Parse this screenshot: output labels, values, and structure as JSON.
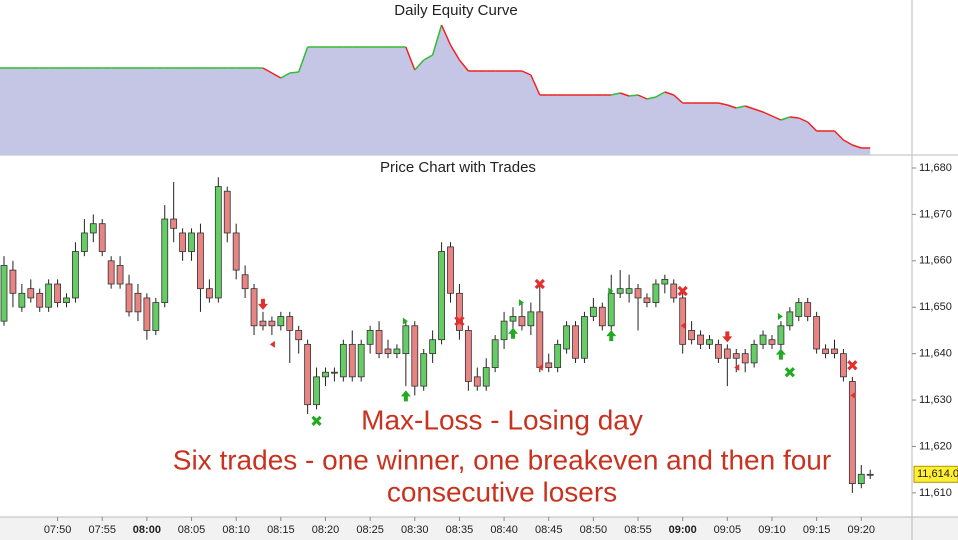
{
  "chart_data": [
    {
      "type": "area",
      "title": "Daily Equity Curve",
      "fill": "#c5c5e6",
      "up_color": "#33bb33",
      "down_color": "#ee2222",
      "ylim": [
        0,
        155
      ],
      "values": [
        87,
        87,
        87,
        87,
        87,
        87,
        87,
        87,
        87,
        87,
        87,
        87,
        87,
        87,
        87,
        87,
        87,
        87,
        87,
        87,
        87,
        87,
        87,
        87,
        87,
        87,
        87,
        87,
        87,
        87,
        82,
        77,
        82,
        83,
        108,
        108,
        108,
        108,
        108,
        108,
        108,
        108,
        108,
        108,
        108,
        108,
        85,
        95,
        100,
        130,
        110,
        95,
        84,
        84,
        84,
        84,
        84,
        84,
        84,
        80,
        60,
        60,
        60,
        60,
        60,
        60,
        60,
        60,
        60,
        62,
        59,
        60,
        56,
        58,
        63,
        60,
        52,
        52,
        52,
        52,
        52,
        50,
        47,
        49,
        46,
        43,
        39,
        35,
        38,
        37,
        33,
        24,
        24,
        24,
        15,
        10,
        7,
        7
      ]
    },
    {
      "type": "candlestick",
      "title": "Price Chart with Trades",
      "up_color": "#66cc66",
      "down_color": "#e88484",
      "categories": [
        null,
        null,
        null,
        null,
        null,
        null,
        "07:50",
        null,
        null,
        null,
        null,
        "07:55",
        null,
        null,
        null,
        null,
        "08:00",
        null,
        null,
        null,
        null,
        "08:05",
        null,
        null,
        null,
        null,
        "08:10",
        null,
        null,
        null,
        null,
        "08:15",
        null,
        null,
        null,
        null,
        "08:20",
        null,
        null,
        null,
        null,
        "08:25",
        null,
        null,
        null,
        null,
        "08:30",
        null,
        null,
        null,
        null,
        "08:35",
        null,
        null,
        null,
        null,
        "08:40",
        null,
        null,
        null,
        null,
        "08:45",
        null,
        null,
        null,
        null,
        "08:50",
        null,
        null,
        null,
        null,
        "08:55",
        null,
        null,
        null,
        null,
        "09:00",
        null,
        null,
        null,
        null,
        "09:05",
        null,
        null,
        null,
        null,
        "09:10",
        null,
        null,
        null,
        null,
        "09:15",
        null,
        null,
        null,
        null,
        "09:20",
        null
      ],
      "open": [
        11647,
        11658,
        11650,
        11654,
        11653,
        11650,
        11655,
        11651,
        11652,
        11662,
        11666,
        11668,
        11660,
        11659,
        11655,
        11653,
        11652,
        11645,
        11651,
        11669,
        11666,
        11662,
        11666,
        11654,
        11652,
        11675,
        11666,
        11657,
        11654,
        11647,
        11647,
        11646,
        11648,
        11645,
        11642,
        11629,
        11635,
        11636,
        11635,
        11642,
        11635,
        11642,
        11645,
        11641,
        11640,
        11640,
        11646,
        11633,
        11640,
        11643,
        11663,
        11653,
        11645,
        11635,
        11633,
        11637,
        11643,
        11647,
        11648,
        11646,
        11649,
        11638,
        11637,
        11641,
        11646,
        11639,
        11648,
        11650,
        11646,
        11653,
        11653,
        11654,
        11652,
        11651,
        11655,
        11655,
        11652,
        11645,
        11644,
        11642,
        11642,
        11641,
        11640,
        11640,
        11638,
        11642,
        11643,
        11642,
        11646,
        11648,
        11651,
        11648,
        11641,
        11641,
        11640,
        11634,
        11612,
        11614
      ],
      "high": [
        11661,
        11660,
        11655,
        11656,
        11654,
        11656,
        11656,
        11653,
        11664,
        11669,
        11670,
        11669,
        11661,
        11661,
        11657,
        11655,
        11653,
        11652,
        11672,
        11677,
        11667,
        11667,
        11668,
        11656,
        11678,
        11676,
        11668,
        11659,
        11655,
        11649,
        11648,
        11649,
        11649,
        11646,
        11643,
        11637,
        11637,
        11637,
        11643,
        11645,
        11643,
        11646,
        11647,
        11643,
        11642,
        11647,
        11647,
        11641,
        11645,
        11664,
        11664,
        11655,
        11646,
        11637,
        11639,
        11644,
        11649,
        11650,
        11651,
        11651,
        11655,
        11640,
        11643,
        11647,
        11647,
        11649,
        11652,
        11651,
        11657,
        11658,
        11657,
        11655,
        11653,
        11656,
        11657,
        11656,
        11654,
        11647,
        11645,
        11644,
        11643,
        11642,
        11641,
        11641,
        11643,
        11645,
        11644,
        11647,
        11650,
        11652,
        11652,
        11649,
        11642,
        11643,
        11641,
        11635,
        11616,
        11615
      ],
      "low": [
        11646,
        11650,
        11649,
        11651,
        11649,
        11649,
        11650,
        11650,
        11651,
        11661,
        11664,
        11661,
        11654,
        11654,
        11648,
        11647,
        11643,
        11644,
        11650,
        11664,
        11660,
        11660,
        11649,
        11651,
        11651,
        11664,
        11656,
        11652,
        11644,
        11645,
        11644,
        11645,
        11638,
        11640,
        11627,
        11628,
        11633,
        11634,
        11634,
        11634,
        11634,
        11640,
        11639,
        11639,
        11639,
        11633,
        11631,
        11632,
        11638,
        11642,
        11651,
        11643,
        11632,
        11632,
        11632,
        11636,
        11641,
        11645,
        11645,
        11644,
        11636,
        11636,
        11636,
        11640,
        11638,
        11638,
        11647,
        11645,
        11645,
        11652,
        11651,
        11645,
        11650,
        11650,
        11653,
        11651,
        11640,
        11642,
        11641,
        11641,
        11638,
        11633,
        11636,
        11636,
        11637,
        11641,
        11641,
        11641,
        11645,
        11647,
        11647,
        11640,
        11639,
        11639,
        11634,
        11610,
        11611,
        11613
      ],
      "close": [
        11659,
        11653,
        11653,
        11652,
        11650,
        11655,
        11651,
        11652,
        11662,
        11666,
        11668,
        11662,
        11655,
        11655,
        11649,
        11649,
        11645,
        11651,
        11669,
        11667,
        11662,
        11666,
        11654,
        11652,
        11676,
        11666,
        11658,
        11654,
        11646,
        11646,
        11646,
        11648,
        11645,
        11643,
        11629,
        11635,
        11636,
        11636,
        11642,
        11635,
        11642,
        11645,
        11640,
        11640,
        11641,
        11646,
        11633,
        11640,
        11643,
        11662,
        11653,
        11645,
        11634,
        11633,
        11637,
        11643,
        11647,
        11648,
        11646,
        11649,
        11637,
        11637,
        11642,
        11646,
        11639,
        11648,
        11650,
        11646,
        11653,
        11654,
        11654,
        11652,
        11651,
        11655,
        11656,
        11652,
        11642,
        11643,
        11642,
        11643,
        11639,
        11639,
        11639,
        11638,
        11642,
        11644,
        11642,
        11646,
        11649,
        11651,
        11648,
        11641,
        11640,
        11640,
        11635,
        11612,
        11614,
        11614
      ],
      "ylim": [
        11604.8,
        11682.8
      ],
      "yticks": [
        {
          "value": 11610,
          "label": "11,610"
        },
        {
          "value": 11620,
          "label": "11,620"
        },
        {
          "value": 11630,
          "label": "11,630"
        },
        {
          "value": 11640,
          "label": "11,640"
        },
        {
          "value": 11650,
          "label": "11,650"
        },
        {
          "value": 11660,
          "label": "11,660"
        },
        {
          "value": 11670,
          "label": "11,670"
        },
        {
          "value": 11680,
          "label": "11,680"
        }
      ],
      "last_price": {
        "value": 11614,
        "label": "11,614.0"
      },
      "markers": [
        {
          "index": 29,
          "price": 11650.5,
          "shape": "arrow-down",
          "color": "#e03030"
        },
        {
          "index": 30,
          "price": 11642,
          "shape": "triangle-left",
          "color": "#e03030"
        },
        {
          "index": 35,
          "price": 11625.5,
          "shape": "cross",
          "color": "#22aa22"
        },
        {
          "index": 45,
          "price": 11647,
          "shape": "triangle-right",
          "color": "#22aa22"
        },
        {
          "index": 45,
          "price": 11631,
          "shape": "arrow-up",
          "color": "#22aa22"
        },
        {
          "index": 51,
          "price": 11647,
          "shape": "cross",
          "color": "#e03030"
        },
        {
          "index": 58,
          "price": 11651,
          "shape": "triangle-right",
          "color": "#22aa22"
        },
        {
          "index": 57,
          "price": 11644.5,
          "shape": "arrow-up",
          "color": "#22aa22"
        },
        {
          "index": 60,
          "price": 11655,
          "shape": "cross",
          "color": "#e03030"
        },
        {
          "index": 60,
          "price": 11637,
          "shape": "triangle-left",
          "color": "#e03030"
        },
        {
          "index": 68,
          "price": 11653.5,
          "shape": "triangle-right",
          "color": "#22aa22"
        },
        {
          "index": 68,
          "price": 11644,
          "shape": "arrow-up",
          "color": "#22aa22"
        },
        {
          "index": 76,
          "price": 11653.5,
          "shape": "cross",
          "color": "#e03030"
        },
        {
          "index": 76,
          "price": 11646,
          "shape": "triangle-left",
          "color": "#e03030"
        },
        {
          "index": 81,
          "price": 11643.5,
          "shape": "arrow-down",
          "color": "#e03030"
        },
        {
          "index": 82,
          "price": 11637,
          "shape": "triangle-left",
          "color": "#e03030"
        },
        {
          "index": 87,
          "price": 11648,
          "shape": "triangle-right",
          "color": "#22aa22"
        },
        {
          "index": 87,
          "price": 11640,
          "shape": "arrow-up",
          "color": "#22aa22"
        },
        {
          "index": 88,
          "price": 11636,
          "shape": "cross",
          "color": "#22aa22"
        },
        {
          "index": 95,
          "price": 11637.5,
          "shape": "cross",
          "color": "#e03030"
        },
        {
          "index": 95,
          "price": 11631,
          "shape": "triangle-left",
          "color": "#e03030"
        }
      ],
      "annotations": [
        "Max-Loss - Losing day",
        "Six trades - one winner, one breakeven and then four",
        "consecutive losers"
      ],
      "annotation_color": "#c8321e"
    }
  ]
}
